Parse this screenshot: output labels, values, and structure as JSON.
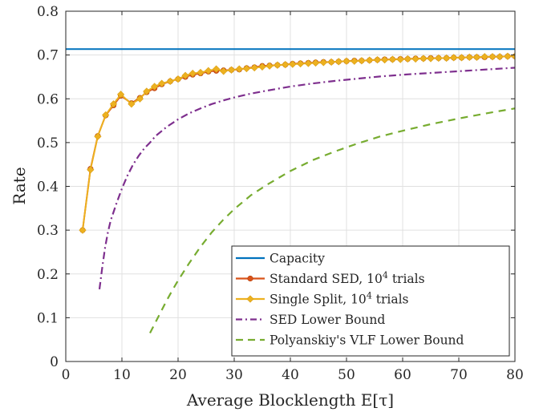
{
  "chart_data": {
    "type": "line",
    "xlabel": "Average Blocklength E[τ]",
    "ylabel": "Rate",
    "xlim": [
      0,
      80
    ],
    "ylim": [
      0,
      0.8
    ],
    "xticks": [
      0,
      10,
      20,
      30,
      40,
      50,
      60,
      70,
      80
    ],
    "yticks": [
      0,
      0.1,
      0.2,
      0.3,
      0.4,
      0.5,
      0.6,
      0.7,
      0.8
    ],
    "grid": true,
    "legend": {
      "position": "bottom-right"
    },
    "series": [
      {
        "name": "Capacity",
        "color": "#0072BD",
        "style": "solid",
        "marker": "none",
        "x": [
          0,
          80
        ],
        "y": [
          0.7136,
          0.7136
        ]
      },
      {
        "name": "Standard SED, 10^4 trials",
        "color": "#D95319",
        "style": "solid",
        "marker": "circle",
        "x": [
          3,
          4.4,
          5.7,
          7.1,
          8.5,
          9.8,
          11.7,
          13.2,
          14.4,
          15.8,
          17.1,
          18.6,
          20,
          21.3,
          22.6,
          24,
          25.4,
          26.8,
          28.1,
          29.5,
          30.9,
          32.2,
          33.6,
          35,
          36.3,
          37.7,
          39.1,
          40.4,
          41.8,
          43.2,
          44.5,
          45.9,
          47.3,
          48.6,
          50,
          51.4,
          52.7,
          54.1,
          55.5,
          56.8,
          58.2,
          59.6,
          60.9,
          62.3,
          63.7,
          65,
          66.4,
          67.8,
          69.1,
          70.5,
          71.9,
          73.2,
          74.6,
          76,
          77.3,
          78.7,
          80
        ],
        "y": [
          0.3,
          0.44,
          0.515,
          0.562,
          0.585,
          0.607,
          0.59,
          0.602,
          0.615,
          0.624,
          0.633,
          0.64,
          0.645,
          0.65,
          0.655,
          0.658,
          0.662,
          0.664,
          0.665,
          0.666,
          0.667,
          0.67,
          0.672,
          0.675,
          0.676,
          0.677,
          0.678,
          0.68,
          0.681,
          0.682,
          0.683,
          0.684,
          0.684,
          0.685,
          0.686,
          0.687,
          0.687,
          0.688,
          0.689,
          0.69,
          0.69,
          0.691,
          0.691,
          0.692,
          0.692,
          0.693,
          0.693,
          0.693,
          0.694,
          0.694,
          0.695,
          0.695,
          0.695,
          0.696,
          0.696,
          0.697,
          0.697
        ]
      },
      {
        "name": "Single Split, 10^4 trials",
        "color": "#EDB120",
        "style": "solid",
        "marker": "diamond",
        "x": [
          3,
          4.4,
          5.7,
          7.1,
          8.5,
          9.8,
          11.7,
          13.2,
          14.4,
          15.8,
          17.1,
          18.6,
          20,
          21.3,
          22.6,
          24,
          25.4,
          26.8,
          28.1,
          29.5,
          30.9,
          32.2,
          33.6,
          35,
          36.3,
          37.7,
          39.1,
          40.4,
          41.8,
          43.2,
          44.5,
          45.9,
          47.3,
          48.6,
          50,
          51.4,
          52.7,
          54.1,
          55.5,
          56.8,
          58.2,
          59.6,
          60.9,
          62.3,
          63.7,
          65,
          66.4,
          67.8,
          69.1,
          70.5,
          71.9,
          73.2,
          74.6,
          76,
          77.3,
          78.7,
          80
        ],
        "y": [
          0.3,
          0.438,
          0.514,
          0.563,
          0.588,
          0.61,
          0.588,
          0.6,
          0.617,
          0.628,
          0.635,
          0.64,
          0.645,
          0.653,
          0.658,
          0.66,
          0.664,
          0.668,
          0.663,
          0.666,
          0.668,
          0.669,
          0.671,
          0.673,
          0.675,
          0.677,
          0.678,
          0.679,
          0.68,
          0.681,
          0.682,
          0.683,
          0.684,
          0.685,
          0.686,
          0.686,
          0.687,
          0.688,
          0.689,
          0.689,
          0.69,
          0.69,
          0.691,
          0.691,
          0.692,
          0.692,
          0.693,
          0.693,
          0.694,
          0.694,
          0.695,
          0.695,
          0.696,
          0.696,
          0.696,
          0.697,
          0.697
        ]
      },
      {
        "name": "SED Lower Bound",
        "color": "#7E2F8E",
        "style": "dashdot",
        "marker": "none",
        "x": [
          6,
          6.5,
          7,
          7.5,
          8,
          9,
          10,
          11,
          12,
          13,
          14,
          15,
          16,
          18,
          20,
          22,
          24,
          26,
          28,
          30,
          33,
          36,
          40,
          44,
          48,
          52,
          56,
          60,
          65,
          70,
          75,
          80
        ],
        "y": [
          0.165,
          0.215,
          0.26,
          0.295,
          0.322,
          0.36,
          0.395,
          0.425,
          0.45,
          0.47,
          0.487,
          0.5,
          0.515,
          0.536,
          0.553,
          0.567,
          0.578,
          0.588,
          0.596,
          0.603,
          0.612,
          0.619,
          0.628,
          0.635,
          0.641,
          0.646,
          0.651,
          0.655,
          0.659,
          0.663,
          0.667,
          0.671
        ]
      },
      {
        "name": "Polyanskiy's VLF Lower Bound",
        "color": "#77AC30",
        "style": "dashed",
        "marker": "none",
        "x": [
          15,
          16,
          17,
          18,
          19,
          20,
          22,
          24,
          26,
          28,
          30,
          33,
          36,
          40,
          44,
          48,
          52,
          56,
          60,
          65,
          70,
          75,
          80
        ],
        "y": [
          0.065,
          0.09,
          0.115,
          0.14,
          0.163,
          0.185,
          0.225,
          0.262,
          0.295,
          0.323,
          0.348,
          0.38,
          0.405,
          0.435,
          0.46,
          0.48,
          0.498,
          0.514,
          0.527,
          0.542,
          0.555,
          0.567,
          0.578
        ]
      }
    ]
  }
}
